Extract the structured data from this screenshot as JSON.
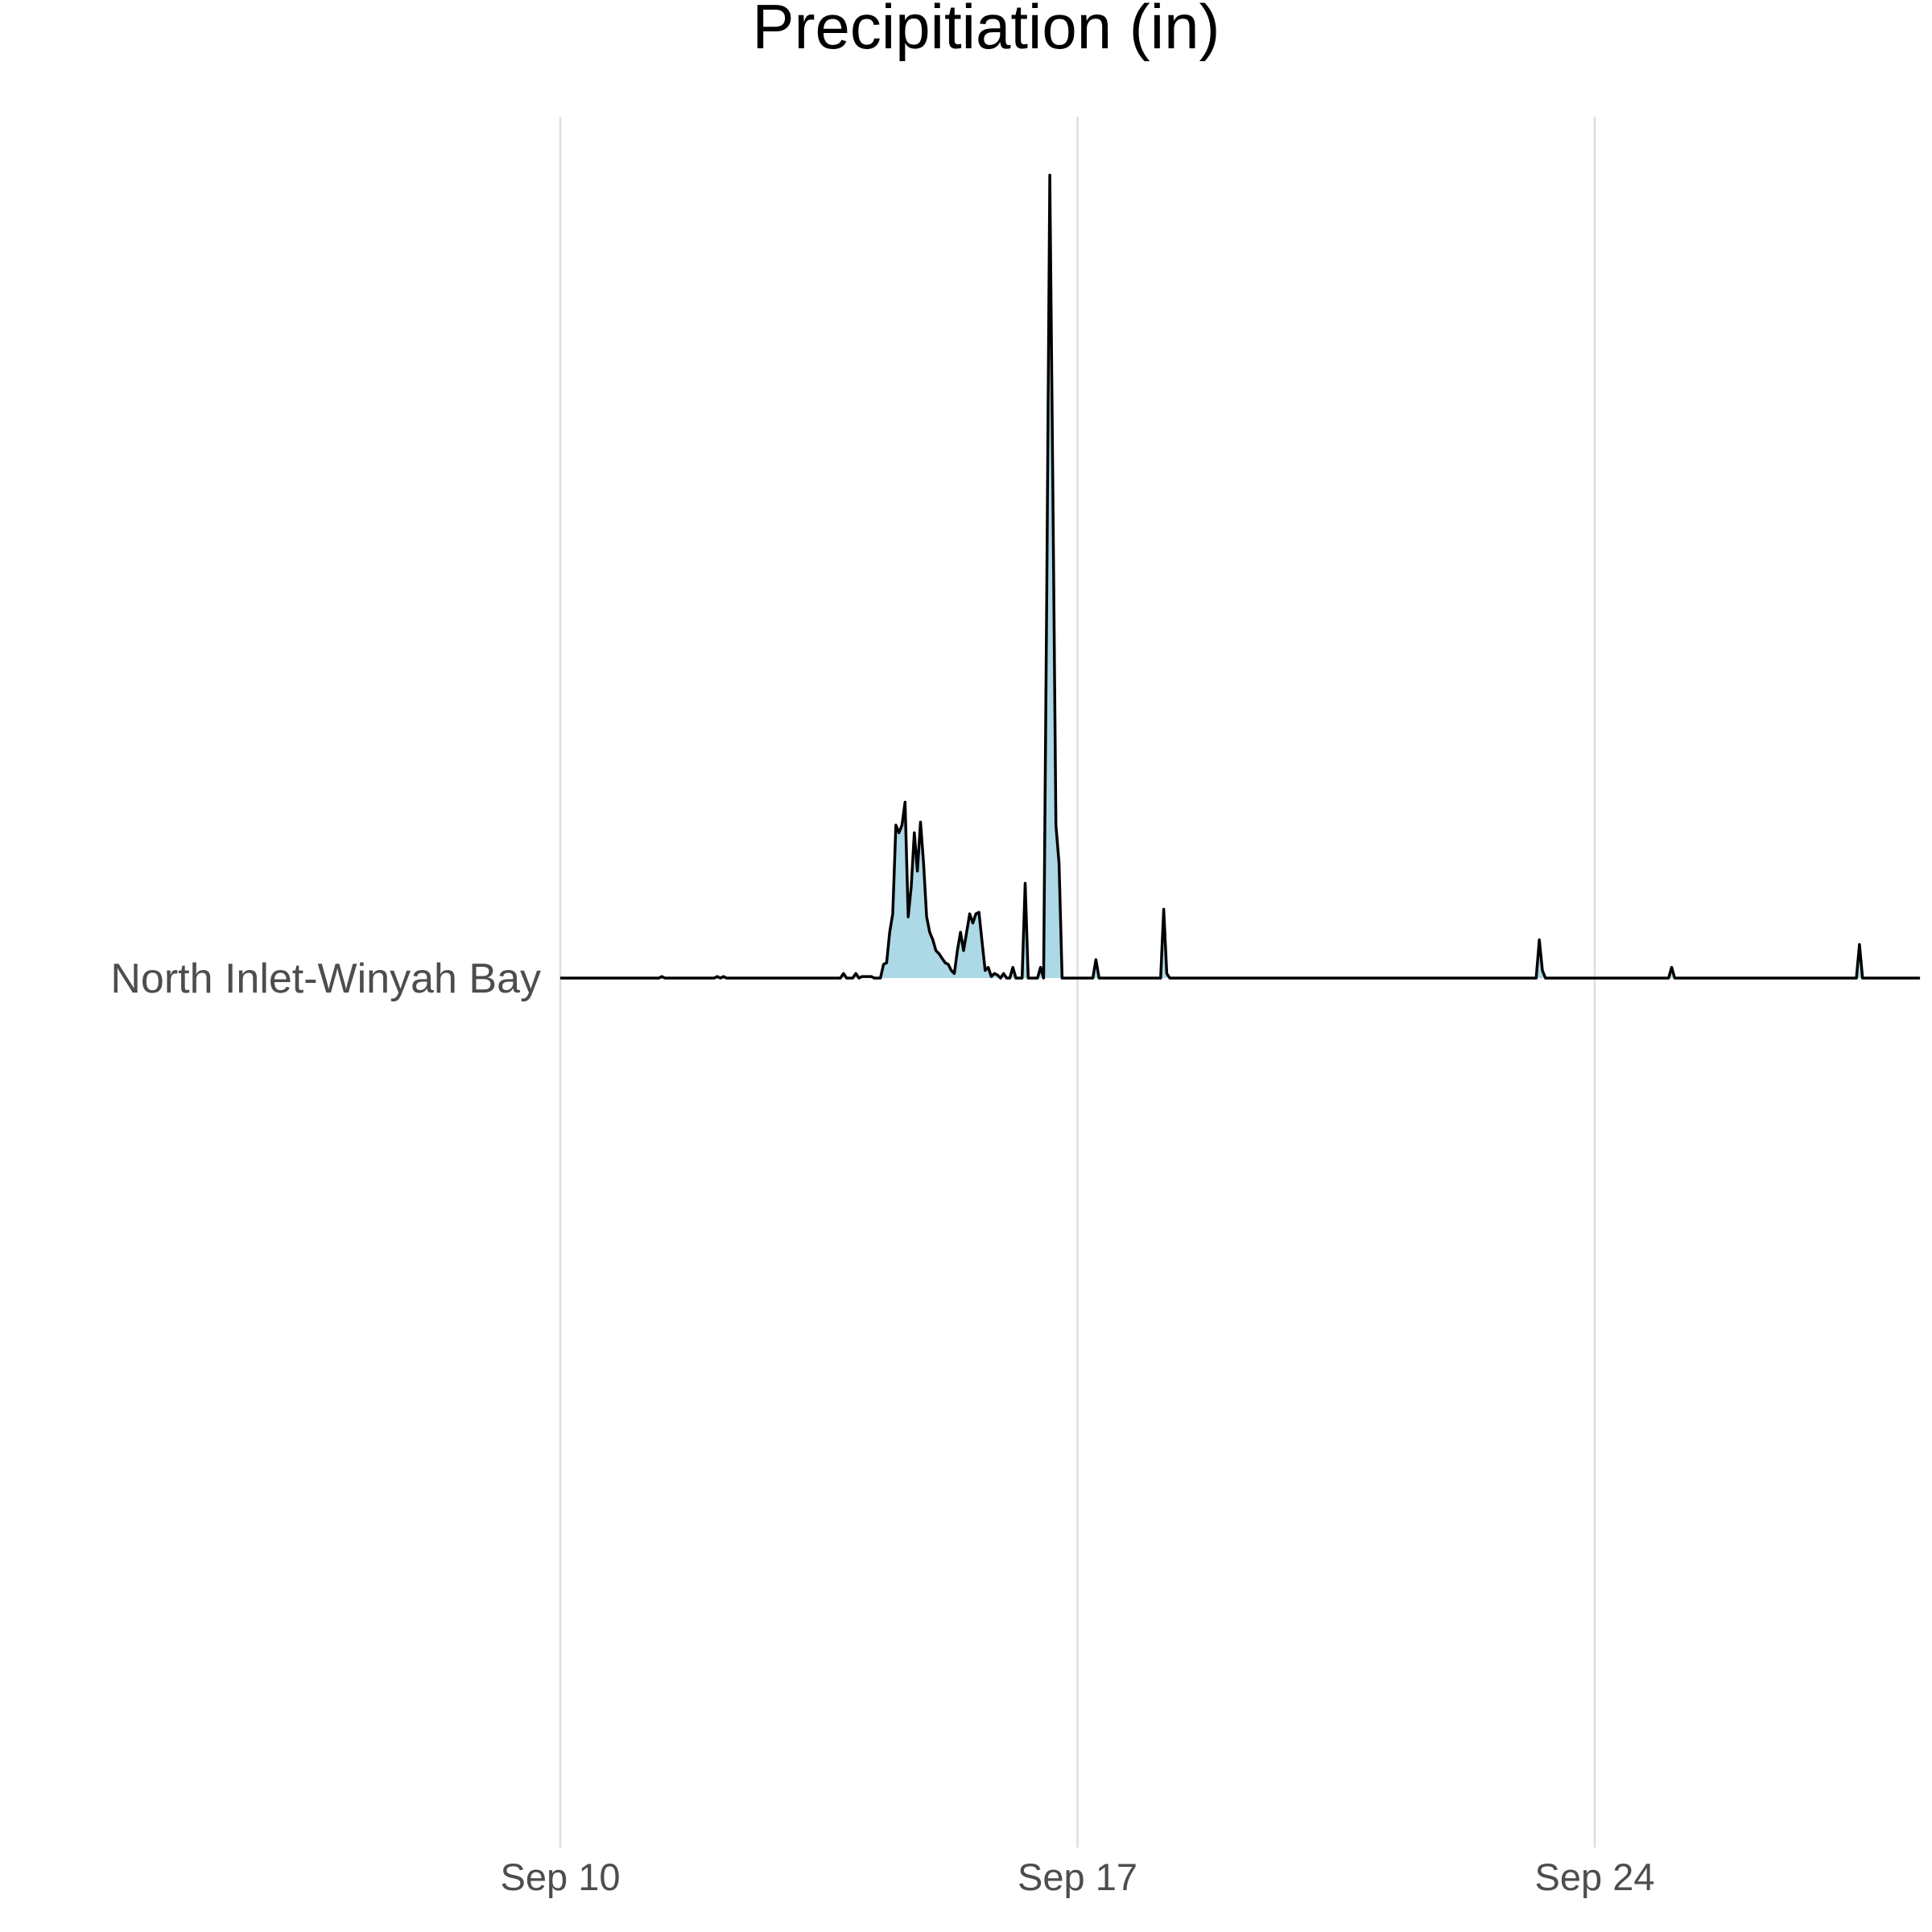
{
  "chart_data": {
    "type": "area",
    "title": "Precipitiation (in)",
    "xlabel": "",
    "ylabel": "",
    "x_ticks": [
      "Sep 10",
      "Sep 17",
      "Sep 24"
    ],
    "x_tick_dates": [
      "2018-09-10",
      "2018-09-17",
      "2018-09-24"
    ],
    "xlim": [
      "2018-09-10",
      "2018-09-28"
    ],
    "grid": "vertical major gridlines",
    "legend": "none",
    "colors": {
      "fill": "#add8e6",
      "line": "#000000",
      "grid": "#dedede"
    },
    "series": [
      {
        "name": "North Inlet-Winyah Bay",
        "points": [
          [
            "2018-09-10 00:00",
            0
          ],
          [
            "2018-09-11 08:00",
            0
          ],
          [
            "2018-09-11 09:00",
            0.001
          ],
          [
            "2018-09-11 10:00",
            0
          ],
          [
            "2018-09-12 02:00",
            0
          ],
          [
            "2018-09-12 03:00",
            0.001
          ],
          [
            "2018-09-12 04:00",
            0
          ],
          [
            "2018-09-12 05:00",
            0.001
          ],
          [
            "2018-09-12 06:00",
            0
          ],
          [
            "2018-09-13 19:00",
            0
          ],
          [
            "2018-09-13 20:00",
            0.003
          ],
          [
            "2018-09-13 21:00",
            0
          ],
          [
            "2018-09-13 23:00",
            0
          ],
          [
            "2018-09-14 00:00",
            0.003
          ],
          [
            "2018-09-14 01:00",
            0
          ],
          [
            "2018-09-14 02:00",
            0.001
          ],
          [
            "2018-09-14 05:00",
            0.001
          ],
          [
            "2018-09-14 06:00",
            0
          ],
          [
            "2018-09-14 08:00",
            0
          ],
          [
            "2018-09-14 09:00",
            0.009
          ],
          [
            "2018-09-14 10:00",
            0.01
          ],
          [
            "2018-09-14 11:00",
            0.03
          ],
          [
            "2018-09-14 12:00",
            0.042
          ],
          [
            "2018-09-14 13:00",
            0.1
          ],
          [
            "2018-09-14 14:00",
            0.095
          ],
          [
            "2018-09-14 15:00",
            0.1
          ],
          [
            "2018-09-14 16:00",
            0.115
          ],
          [
            "2018-09-14 17:00",
            0.04
          ],
          [
            "2018-09-14 18:00",
            0.06
          ],
          [
            "2018-09-14 19:00",
            0.095
          ],
          [
            "2018-09-14 20:00",
            0.07
          ],
          [
            "2018-09-14 21:00",
            0.102
          ],
          [
            "2018-09-14 22:00",
            0.075
          ],
          [
            "2018-09-14 23:00",
            0.04
          ],
          [
            "2018-09-15 00:00",
            0.03
          ],
          [
            "2018-09-15 01:00",
            0.025
          ],
          [
            "2018-09-15 02:00",
            0.018
          ],
          [
            "2018-09-15 03:00",
            0.016
          ],
          [
            "2018-09-15 04:00",
            0.013
          ],
          [
            "2018-09-15 05:00",
            0.01
          ],
          [
            "2018-09-15 06:00",
            0.009
          ],
          [
            "2018-09-15 07:00",
            0.005
          ],
          [
            "2018-09-15 08:00",
            0.003
          ],
          [
            "2018-09-15 09:00",
            0.018
          ],
          [
            "2018-09-15 10:00",
            0.03
          ],
          [
            "2018-09-15 11:00",
            0.018
          ],
          [
            "2018-09-15 12:00",
            0.03
          ],
          [
            "2018-09-15 13:00",
            0.042
          ],
          [
            "2018-09-15 14:00",
            0.036
          ],
          [
            "2018-09-15 15:00",
            0.042
          ],
          [
            "2018-09-15 16:00",
            0.043
          ],
          [
            "2018-09-15 17:00",
            0.024
          ],
          [
            "2018-09-15 18:00",
            0.005
          ],
          [
            "2018-09-15 19:00",
            0.007
          ],
          [
            "2018-09-15 20:00",
            0.001
          ],
          [
            "2018-09-15 21:00",
            0.003
          ],
          [
            "2018-09-15 22:00",
            0.002
          ],
          [
            "2018-09-15 23:00",
            0
          ],
          [
            "2018-09-16 00:00",
            0.003
          ],
          [
            "2018-09-16 01:00",
            0
          ],
          [
            "2018-09-16 02:00",
            0
          ],
          [
            "2018-09-16 03:00",
            0.007
          ],
          [
            "2018-09-16 04:00",
            0
          ],
          [
            "2018-09-16 06:00",
            0
          ],
          [
            "2018-09-16 07:00",
            0.062
          ],
          [
            "2018-09-16 08:00",
            0
          ],
          [
            "2018-09-16 11:00",
            0
          ],
          [
            "2018-09-16 12:00",
            0.007
          ],
          [
            "2018-09-16 13:00",
            0
          ],
          [
            "2018-09-16 14:00",
            0.25
          ],
          [
            "2018-09-16 15:00",
            0.525
          ],
          [
            "2018-09-16 16:00",
            0.32
          ],
          [
            "2018-09-16 17:00",
            0.1
          ],
          [
            "2018-09-16 18:00",
            0.075
          ],
          [
            "2018-09-16 19:00",
            0
          ],
          [
            "2018-09-17 05:00",
            0
          ],
          [
            "2018-09-17 06:00",
            0.012
          ],
          [
            "2018-09-17 07:00",
            0
          ],
          [
            "2018-09-18 03:00",
            0
          ],
          [
            "2018-09-18 04:00",
            0.045
          ],
          [
            "2018-09-18 05:00",
            0.003
          ],
          [
            "2018-09-18 06:00",
            0
          ],
          [
            "2018-09-23 05:00",
            0
          ],
          [
            "2018-09-23 06:00",
            0.025
          ],
          [
            "2018-09-23 07:00",
            0.005
          ],
          [
            "2018-09-23 08:00",
            0
          ],
          [
            "2018-09-25 00:00",
            0
          ],
          [
            "2018-09-25 01:00",
            0.007
          ],
          [
            "2018-09-25 02:00",
            0
          ],
          [
            "2018-09-27 13:00",
            0
          ],
          [
            "2018-09-27 14:00",
            0.022
          ],
          [
            "2018-09-27 15:00",
            0
          ],
          [
            "2018-09-28 00:00",
            0
          ]
        ]
      }
    ]
  }
}
